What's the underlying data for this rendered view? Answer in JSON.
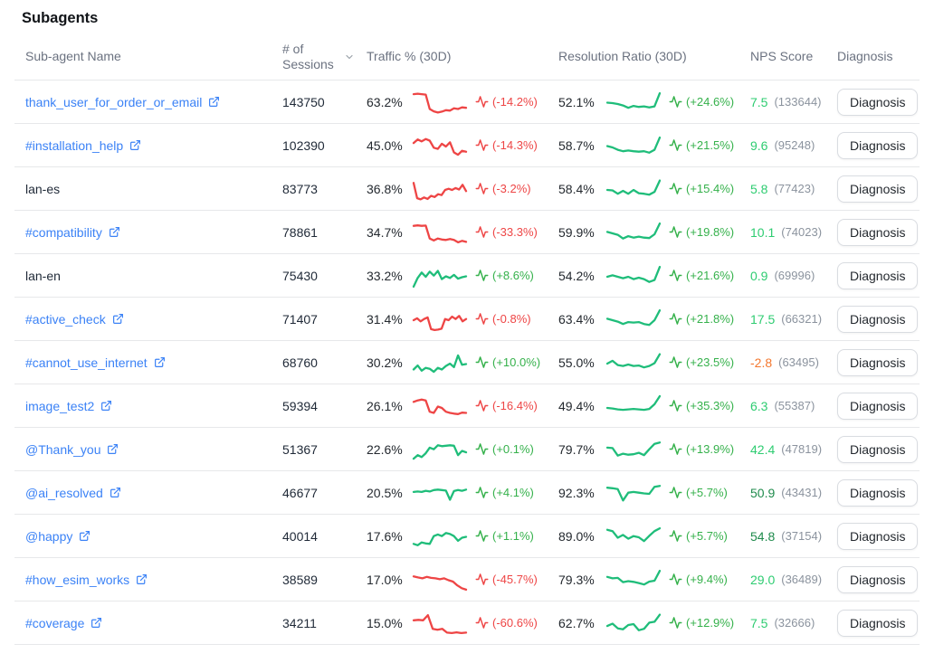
{
  "page": {
    "title": "Subagents"
  },
  "colors": {
    "link": "#3b82f6",
    "negative": "#ee4545",
    "positive": "#35b14b",
    "spark_negative": "#ee4545",
    "spark_positive": "#1fbd7a",
    "nps_positive": "#2ecc71",
    "nps_high": "#1f8b4c",
    "nps_negative": "#f4772e",
    "muted": "#8b939e",
    "header_text": "#6b7280",
    "border": "#e7e8ea"
  },
  "table": {
    "headers": {
      "name": "Sub-agent Name",
      "sessions": "# of Sessions",
      "sessions_sort_icon": "chevron-down-icon",
      "traffic": "Traffic % (30D)",
      "resolution": "Resolution Ratio (30D)",
      "nps": "NPS Score",
      "diagnosis": "Diagnosis"
    },
    "diagnosis_label": "Diagnosis",
    "rows": [
      {
        "name": "thank_user_for_order_or_email",
        "is_link": true,
        "sessions": "143750",
        "traffic_pct": "63.2%",
        "traffic_change": "(-14.2%)",
        "traffic_trend": "down",
        "traffic_spark": [
          0.88,
          0.9,
          0.88,
          0.86,
          0.25,
          0.15,
          0.1,
          0.14,
          0.2,
          0.18,
          0.28,
          0.25,
          0.32,
          0.3
        ],
        "resolution_pct": "52.1%",
        "resolution_change": "(+24.6%)",
        "resolution_trend": "up",
        "resolution_spark": [
          0.52,
          0.5,
          0.46,
          0.4,
          0.3,
          0.38,
          0.34,
          0.36,
          0.32,
          0.36,
          0.92
        ],
        "nps": "7.5",
        "nps_tier": "positive",
        "nps_count": "(133644)"
      },
      {
        "name": "#installation_help",
        "is_link": true,
        "sessions": "102390",
        "traffic_pct": "45.0%",
        "traffic_change": "(-14.3%)",
        "traffic_trend": "down",
        "traffic_spark": [
          0.65,
          0.8,
          0.72,
          0.82,
          0.75,
          0.45,
          0.4,
          0.62,
          0.5,
          0.68,
          0.25,
          0.15,
          0.32,
          0.28
        ],
        "resolution_pct": "58.7%",
        "resolution_change": "(+21.5%)",
        "resolution_trend": "up",
        "resolution_spark": [
          0.52,
          0.46,
          0.36,
          0.3,
          0.33,
          0.3,
          0.28,
          0.3,
          0.24,
          0.36,
          0.88
        ],
        "nps": "9.6",
        "nps_tier": "positive",
        "nps_count": "(95248)"
      },
      {
        "name": "lan-es",
        "is_link": false,
        "sessions": "83773",
        "traffic_pct": "36.8%",
        "traffic_change": "(-3.2%)",
        "traffic_trend": "down",
        "traffic_spark": [
          0.8,
          0.15,
          0.1,
          0.18,
          0.12,
          0.25,
          0.2,
          0.32,
          0.28,
          0.5,
          0.55,
          0.5,
          0.58,
          0.52,
          0.72,
          0.45
        ],
        "resolution_pct": "58.4%",
        "resolution_change": "(+15.4%)",
        "resolution_trend": "up",
        "resolution_spark": [
          0.5,
          0.48,
          0.34,
          0.46,
          0.34,
          0.5,
          0.36,
          0.34,
          0.3,
          0.42,
          0.9
        ],
        "nps": "5.8",
        "nps_tier": "positive",
        "nps_count": "(77423)"
      },
      {
        "name": "#compatibility",
        "is_link": true,
        "sessions": "78861",
        "traffic_pct": "34.7%",
        "traffic_change": "(-33.3%)",
        "traffic_trend": "down",
        "traffic_spark": [
          0.82,
          0.84,
          0.82,
          0.83,
          0.28,
          0.2,
          0.28,
          0.24,
          0.22,
          0.26,
          0.22,
          0.12,
          0.18,
          0.14
        ],
        "resolution_pct": "59.9%",
        "resolution_change": "(+19.8%)",
        "resolution_trend": "up",
        "resolution_spark": [
          0.56,
          0.5,
          0.44,
          0.28,
          0.38,
          0.32,
          0.36,
          0.32,
          0.3,
          0.46,
          0.92
        ],
        "nps": "10.1",
        "nps_tier": "positive",
        "nps_count": "(74023)"
      },
      {
        "name": "lan-en",
        "is_link": false,
        "sessions": "75430",
        "traffic_pct": "33.2%",
        "traffic_change": "(+8.6%)",
        "traffic_trend": "up",
        "traffic_spark": [
          0.08,
          0.45,
          0.68,
          0.5,
          0.72,
          0.55,
          0.75,
          0.4,
          0.52,
          0.45,
          0.58,
          0.42,
          0.48,
          0.52
        ],
        "resolution_pct": "54.2%",
        "resolution_change": "(+21.6%)",
        "resolution_trend": "up",
        "resolution_spark": [
          0.5,
          0.56,
          0.5,
          0.44,
          0.5,
          0.4,
          0.46,
          0.4,
          0.28,
          0.36,
          0.92
        ],
        "nps": "0.9",
        "nps_tier": "positive",
        "nps_count": "(69996)"
      },
      {
        "name": "#active_check",
        "is_link": true,
        "sessions": "71407",
        "traffic_pct": "31.4%",
        "traffic_change": "(-0.8%)",
        "traffic_trend": "down",
        "traffic_spark": [
          0.5,
          0.58,
          0.45,
          0.55,
          0.62,
          0.12,
          0.08,
          0.1,
          0.14,
          0.55,
          0.5,
          0.65,
          0.55,
          0.68,
          0.45,
          0.55
        ],
        "resolution_pct": "63.4%",
        "resolution_change": "(+21.8%)",
        "resolution_trend": "up",
        "resolution_spark": [
          0.56,
          0.5,
          0.44,
          0.34,
          0.42,
          0.4,
          0.42,
          0.34,
          0.3,
          0.5,
          0.92
        ],
        "nps": "17.5",
        "nps_tier": "positive",
        "nps_count": "(66321)"
      },
      {
        "name": "#cannot_use_internet",
        "is_link": true,
        "sessions": "68760",
        "traffic_pct": "30.2%",
        "traffic_change": "(+10.0%)",
        "traffic_trend": "up",
        "traffic_spark": [
          0.25,
          0.42,
          0.2,
          0.32,
          0.28,
          0.15,
          0.32,
          0.25,
          0.4,
          0.5,
          0.35,
          0.85,
          0.45,
          0.48
        ],
        "resolution_pct": "55.0%",
        "resolution_change": "(+23.5%)",
        "resolution_trend": "up",
        "resolution_spark": [
          0.5,
          0.62,
          0.44,
          0.4,
          0.46,
          0.4,
          0.42,
          0.34,
          0.4,
          0.52,
          0.9
        ],
        "nps": "-2.8",
        "nps_tier": "negative",
        "nps_count": "(63495)"
      },
      {
        "name": "image_test2",
        "is_link": true,
        "sessions": "59394",
        "traffic_pct": "26.1%",
        "traffic_change": "(-16.4%)",
        "traffic_trend": "down",
        "traffic_spark": [
          0.72,
          0.78,
          0.82,
          0.78,
          0.3,
          0.25,
          0.52,
          0.46,
          0.3,
          0.25,
          0.22,
          0.2,
          0.26,
          0.25
        ],
        "resolution_pct": "49.4%",
        "resolution_change": "(+35.3%)",
        "resolution_trend": "up",
        "resolution_spark": [
          0.46,
          0.44,
          0.4,
          0.38,
          0.4,
          0.42,
          0.4,
          0.38,
          0.42,
          0.62,
          0.96
        ],
        "nps": "6.3",
        "nps_tier": "positive",
        "nps_count": "(55387)"
      },
      {
        "name": "@Thank_you",
        "is_link": true,
        "sessions": "51367",
        "traffic_pct": "22.6%",
        "traffic_change": "(+0.1%)",
        "traffic_trend": "up",
        "traffic_spark": [
          0.15,
          0.3,
          0.22,
          0.38,
          0.62,
          0.55,
          0.72,
          0.68,
          0.7,
          0.72,
          0.7,
          0.3,
          0.48,
          0.42
        ],
        "resolution_pct": "79.7%",
        "resolution_change": "(+13.9%)",
        "resolution_trend": "up",
        "resolution_spark": [
          0.62,
          0.6,
          0.28,
          0.36,
          0.32,
          0.34,
          0.4,
          0.3,
          0.55,
          0.78,
          0.84
        ],
        "nps": "42.4",
        "nps_tier": "positive",
        "nps_count": "(47819)"
      },
      {
        "name": "@ai_resolved",
        "is_link": true,
        "sessions": "46677",
        "traffic_pct": "20.5%",
        "traffic_change": "(+4.1%)",
        "traffic_trend": "up",
        "traffic_spark": [
          0.58,
          0.6,
          0.58,
          0.63,
          0.6,
          0.66,
          0.68,
          0.66,
          0.64,
          0.25,
          0.62,
          0.66,
          0.63,
          0.68
        ],
        "resolution_pct": "92.3%",
        "resolution_change": "(+5.7%)",
        "resolution_trend": "up",
        "resolution_spark": [
          0.76,
          0.74,
          0.7,
          0.22,
          0.55,
          0.58,
          0.55,
          0.52,
          0.5,
          0.8,
          0.84
        ],
        "nps": "50.9",
        "nps_tier": "high",
        "nps_count": "(43431)"
      },
      {
        "name": "@happy",
        "is_link": true,
        "sessions": "40014",
        "traffic_pct": "17.6%",
        "traffic_change": "(+1.1%)",
        "traffic_trend": "up",
        "traffic_spark": [
          0.22,
          0.16,
          0.28,
          0.24,
          0.22,
          0.55,
          0.62,
          0.55,
          0.68,
          0.64,
          0.55,
          0.35,
          0.48,
          0.52
        ],
        "resolution_pct": "89.0%",
        "resolution_change": "(+5.7%)",
        "resolution_trend": "up",
        "resolution_spark": [
          0.82,
          0.76,
          0.48,
          0.6,
          0.44,
          0.55,
          0.5,
          0.34,
          0.56,
          0.76,
          0.88
        ],
        "nps": "54.8",
        "nps_tier": "high",
        "nps_count": "(37154)"
      },
      {
        "name": "#how_esim_works",
        "is_link": true,
        "sessions": "38589",
        "traffic_pct": "17.0%",
        "traffic_change": "(-45.7%)",
        "traffic_trend": "down",
        "traffic_spark": [
          0.68,
          0.64,
          0.6,
          0.66,
          0.62,
          0.6,
          0.56,
          0.6,
          0.52,
          0.46,
          0.3,
          0.18,
          0.12
        ],
        "resolution_pct": "79.3%",
        "resolution_change": "(+9.4%)",
        "resolution_trend": "up",
        "resolution_spark": [
          0.66,
          0.6,
          0.62,
          0.44,
          0.48,
          0.45,
          0.4,
          0.34,
          0.46,
          0.5,
          0.92
        ],
        "nps": "29.0",
        "nps_tier": "positive",
        "nps_count": "(36489)"
      },
      {
        "name": "#coverage",
        "is_link": true,
        "sessions": "34211",
        "traffic_pct": "15.0%",
        "traffic_change": "(-60.6%)",
        "traffic_trend": "down",
        "traffic_spark": [
          0.66,
          0.68,
          0.66,
          0.88,
          0.3,
          0.26,
          0.3,
          0.14,
          0.12,
          0.15,
          0.12,
          0.14
        ],
        "resolution_pct": "62.7%",
        "resolution_change": "(+12.9%)",
        "resolution_trend": "up",
        "resolution_spark": [
          0.42,
          0.52,
          0.32,
          0.28,
          0.46,
          0.5,
          0.24,
          0.3,
          0.56,
          0.6,
          0.9
        ],
        "nps": "7.5",
        "nps_tier": "positive",
        "nps_count": "(32666)"
      }
    ]
  }
}
